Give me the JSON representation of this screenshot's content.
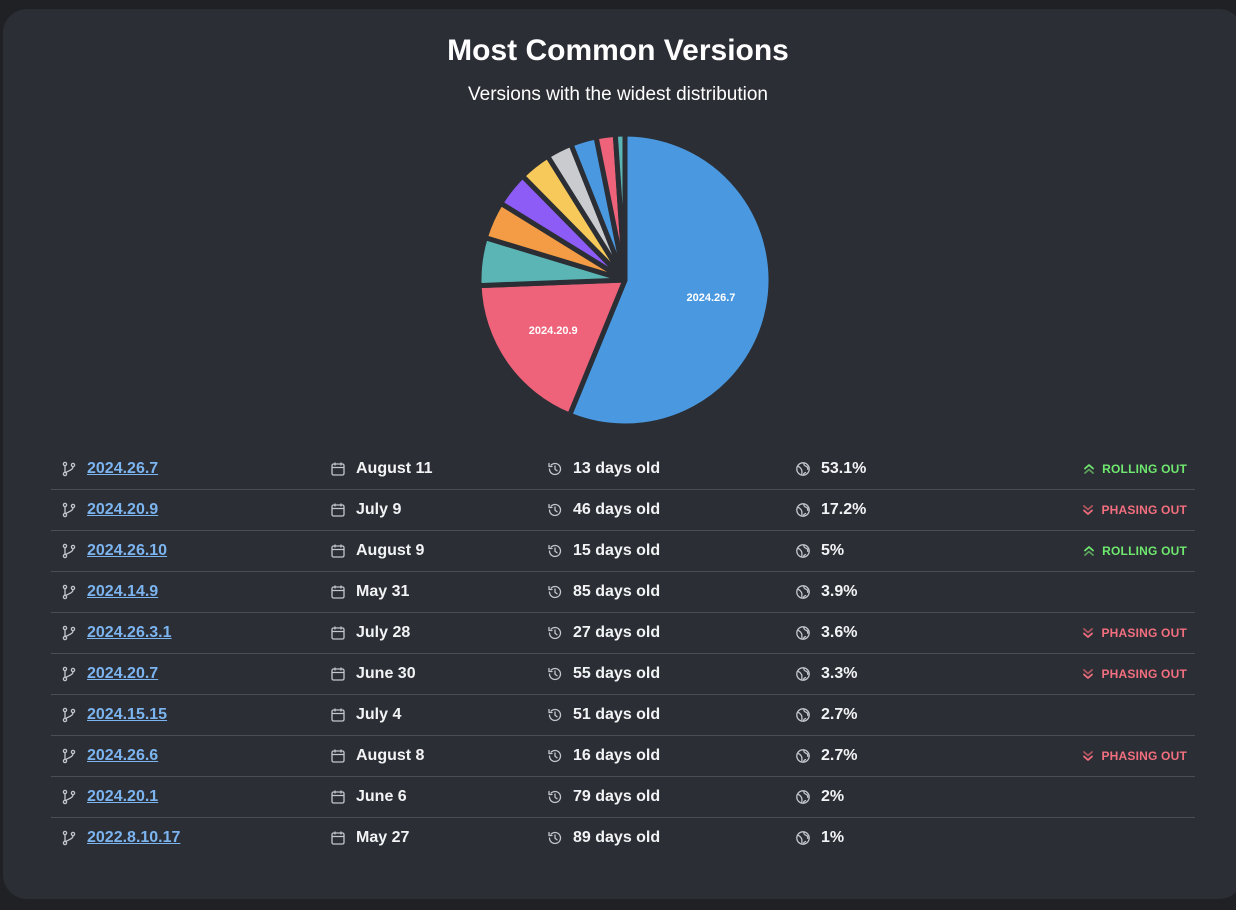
{
  "header": {
    "title": "Most Common Versions",
    "subtitle": "Versions with the widest distribution"
  },
  "chart_data": {
    "type": "pie",
    "categories": [
      "2024.26.7",
      "2024.20.9",
      "2024.26.10",
      "2024.14.9",
      "2024.26.3.1",
      "2024.20.7",
      "2024.15.15",
      "2024.26.6",
      "2024.20.1",
      "2022.8.10.17"
    ],
    "values": [
      53.1,
      17.2,
      5,
      3.9,
      3.6,
      3.3,
      2.7,
      2.7,
      2,
      1
    ],
    "colors": [
      "#4a98e0",
      "#ee637a",
      "#5bb5b5",
      "#f39c45",
      "#8d5cf6",
      "#f7c85a",
      "#c9cbcf",
      "#4a98e0",
      "#ee637a",
      "#5bb5b5"
    ],
    "labeled": [
      "2024.26.7",
      "2024.20.9"
    ]
  },
  "versions": [
    {
      "version": "2024.26.7",
      "date": "August 11",
      "age": "13 days old",
      "share": "53.1%",
      "status": "ROLLING OUT",
      "trend": "up"
    },
    {
      "version": "2024.20.9",
      "date": "July 9",
      "age": "46 days old",
      "share": "17.2%",
      "status": "PHASING OUT",
      "trend": "down"
    },
    {
      "version": "2024.26.10",
      "date": "August 9",
      "age": "15 days old",
      "share": "5%",
      "status": "ROLLING OUT",
      "trend": "up"
    },
    {
      "version": "2024.14.9",
      "date": "May 31",
      "age": "85 days old",
      "share": "3.9%",
      "status": "",
      "trend": ""
    },
    {
      "version": "2024.26.3.1",
      "date": "July 28",
      "age": "27 days old",
      "share": "3.6%",
      "status": "PHASING OUT",
      "trend": "down"
    },
    {
      "version": "2024.20.7",
      "date": "June 30",
      "age": "55 days old",
      "share": "3.3%",
      "status": "PHASING OUT",
      "trend": "down"
    },
    {
      "version": "2024.15.15",
      "date": "July 4",
      "age": "51 days old",
      "share": "2.7%",
      "status": "",
      "trend": ""
    },
    {
      "version": "2024.26.6",
      "date": "August 8",
      "age": "16 days old",
      "share": "2.7%",
      "status": "PHASING OUT",
      "trend": "down"
    },
    {
      "version": "2024.20.1",
      "date": "June 6",
      "age": "79 days old",
      "share": "2%",
      "status": "",
      "trend": ""
    },
    {
      "version": "2022.8.10.17",
      "date": "May 27",
      "age": "89 days old",
      "share": "1%",
      "status": "",
      "trend": ""
    }
  ],
  "icons": {
    "version": "git-branch-icon",
    "date": "calendar-icon",
    "age": "history-icon",
    "share": "globe-icon",
    "rolling": "chevrons-up-icon",
    "phasing": "chevrons-down-icon"
  },
  "colors": {
    "background": "#2b2e34",
    "link": "#7cb4f0",
    "rolling_out": "#6fe86f",
    "phasing_out": "#f36f7f"
  }
}
